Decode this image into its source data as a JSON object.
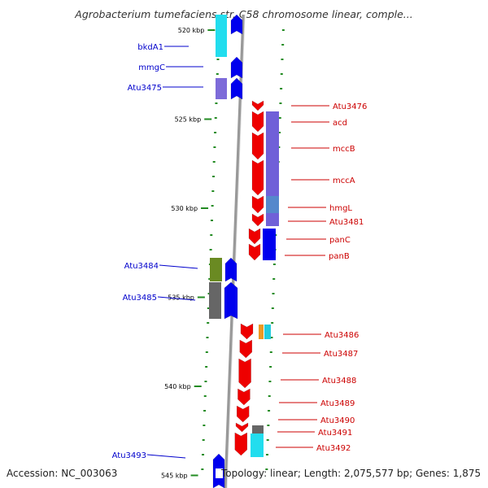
{
  "title": "Agrobacterium tumefaciens str. C58 chromosome linear, comple...",
  "footer": {
    "accession": "Accession: NC_003063",
    "summary": "Topology: linear; Length: 2,075,577 bp; Genes: 1,875"
  },
  "colors": {
    "reverse_label": "#0000cc",
    "forward_label": "#cc0000",
    "backbone": "#999999",
    "tick": "#228b22",
    "reverse_gene": "#0000ee",
    "forward_gene": "#ee0000"
  },
  "chart_data": {
    "type": "genome-map",
    "scale_unit": "kbp",
    "scale_labels": [
      {
        "kbp": 520,
        "label": "520 kbp"
      },
      {
        "kbp": 525,
        "label": "525 kbp"
      },
      {
        "kbp": 530,
        "label": "530 kbp"
      },
      {
        "kbp": 535,
        "label": "535 kbp"
      },
      {
        "kbp": 540,
        "label": "540 kbp"
      },
      {
        "kbp": 545,
        "label": "545 kbp"
      }
    ],
    "reverse_strand_labels": [
      "bkdA1",
      "mmgC",
      "Atu3475",
      "Atu3484",
      "Atu3485",
      "Atu3493"
    ],
    "forward_strand_labels": [
      "Atu3476",
      "acd",
      "mccB",
      "mccA",
      "hmgL",
      "Atu3481",
      "panC",
      "panB",
      "Atu3486",
      "Atu3487",
      "Atu3488",
      "Atu3489",
      "Atu3490",
      "Atu3491",
      "Atu3492"
    ]
  }
}
